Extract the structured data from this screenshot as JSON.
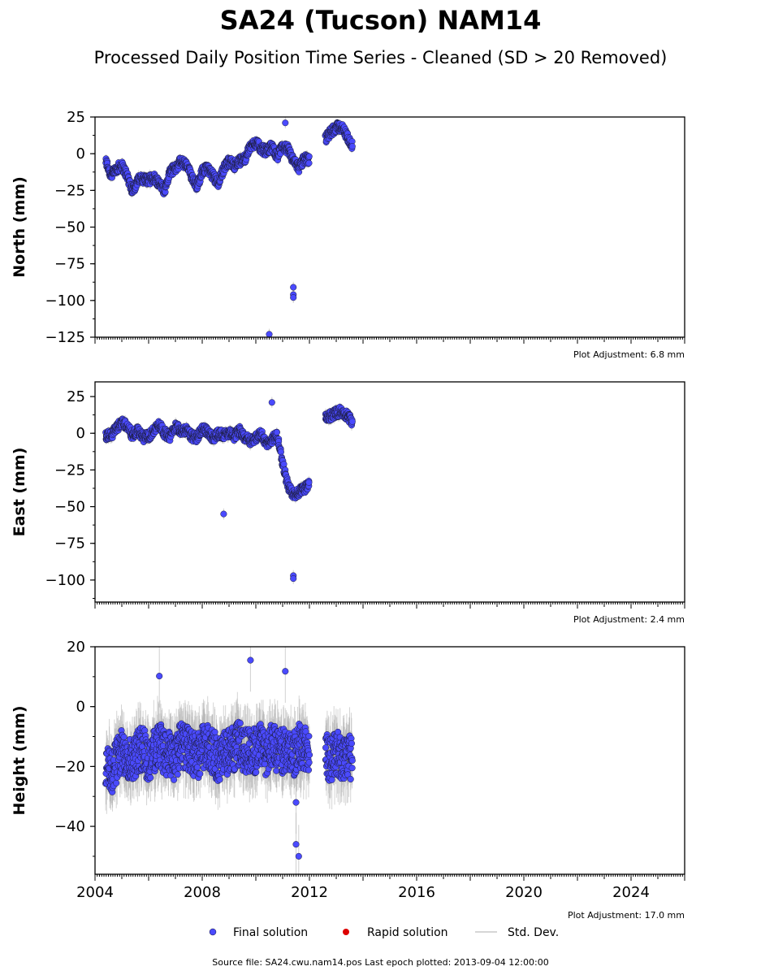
{
  "title": "SA24 (Tucson) NAM14",
  "subtitle": "Processed Daily Position Time Series - Cleaned (SD > 20 Removed)",
  "footer": "Source file: SA24.cwu.nam14.pos  Last epoch plotted: 2013-09-04 12:00:00",
  "legend": {
    "final": "Final solution",
    "rapid": "Rapid solution",
    "std": "Std. Dev."
  },
  "colors": {
    "final": "#4a4aff",
    "final_edge": "#1a1a33",
    "rapid": "#dd0000",
    "std": "#b0b0b0"
  },
  "chart_data": [
    {
      "type": "scatter",
      "component": "north",
      "ylabel": "North (mm)",
      "ylim": [
        -125,
        25
      ],
      "yticks": [
        25,
        0,
        -25,
        -50,
        -75,
        -100,
        -125
      ],
      "xlim": [
        2004.0,
        2026.0
      ],
      "adjustment": "Plot Adjustment: 6.8 mm",
      "x": [
        2004.4,
        2004.6,
        2004.8,
        2005.0,
        2005.2,
        2005.4,
        2005.6,
        2005.8,
        2006.0,
        2006.2,
        2006.4,
        2006.6,
        2006.8,
        2007.0,
        2007.2,
        2007.4,
        2007.6,
        2007.8,
        2008.0,
        2008.2,
        2008.4,
        2008.6,
        2008.8,
        2009.0,
        2009.2,
        2009.4,
        2009.6,
        2009.8,
        2010.0,
        2010.2,
        2010.4,
        2010.6,
        2010.8,
        2011.0,
        2011.2,
        2011.4,
        2011.6,
        2011.8,
        2012.0,
        2012.6,
        2012.8,
        2013.0,
        2013.2,
        2013.4,
        2013.6
      ],
      "y": [
        -5,
        -15,
        -10,
        -8,
        -15,
        -25,
        -18,
        -17,
        -18,
        -16,
        -20,
        -25,
        -12,
        -10,
        -5,
        -8,
        -15,
        -22,
        -12,
        -10,
        -15,
        -20,
        -10,
        -5,
        -8,
        -5,
        -3,
        5,
        8,
        3,
        2,
        5,
        -2,
        5,
        3,
        -5,
        -10,
        -3,
        -5,
        10,
        15,
        18,
        18,
        12,
        5
      ],
      "outliers": [
        {
          "x": 2010.5,
          "y": -123
        },
        {
          "x": 2011.4,
          "y": -91
        },
        {
          "x": 2011.4,
          "y": -96
        },
        {
          "x": 2011.4,
          "y": -98
        },
        {
          "x": 2011.1,
          "y": 21
        }
      ]
    },
    {
      "type": "scatter",
      "component": "east",
      "ylabel": "East (mm)",
      "ylim": [
        -115,
        35
      ],
      "yticks": [
        25,
        0,
        -25,
        -50,
        -75,
        -100
      ],
      "xlim": [
        2004.0,
        2026.0
      ],
      "adjustment": "Plot Adjustment: 2.4 mm",
      "x": [
        2004.4,
        2004.6,
        2004.8,
        2005.0,
        2005.2,
        2005.4,
        2005.6,
        2005.8,
        2006.0,
        2006.2,
        2006.4,
        2006.6,
        2006.8,
        2007.0,
        2007.2,
        2007.4,
        2007.6,
        2007.8,
        2008.0,
        2008.2,
        2008.4,
        2008.6,
        2008.8,
        2009.0,
        2009.2,
        2009.4,
        2009.6,
        2009.8,
        2010.0,
        2010.2,
        2010.4,
        2010.6,
        2010.8,
        2011.0,
        2011.2,
        2011.4,
        2011.6,
        2011.8,
        2012.0,
        2012.6,
        2012.8,
        2013.0,
        2013.2,
        2013.4,
        2013.6
      ],
      "y": [
        -2,
        -1,
        3,
        8,
        5,
        -2,
        2,
        -3,
        -2,
        2,
        6,
        0,
        -2,
        5,
        2,
        2,
        -2,
        -3,
        3,
        1,
        -3,
        0,
        -1,
        0,
        -2,
        2,
        -3,
        -5,
        -3,
        0,
        -8,
        -4,
        -2,
        -20,
        -36,
        -42,
        -40,
        -38,
        -35,
        10,
        12,
        14,
        15,
        12,
        8
      ],
      "outliers": [
        {
          "x": 2008.8,
          "y": -55
        },
        {
          "x": 2011.4,
          "y": -97
        },
        {
          "x": 2011.4,
          "y": -99
        },
        {
          "x": 2010.6,
          "y": 21
        }
      ]
    },
    {
      "type": "scatter",
      "component": "height",
      "ylabel": "Height (mm)",
      "ylim": [
        -56,
        20
      ],
      "yticks": [
        20,
        0,
        -20,
        -40
      ],
      "xlim": [
        2004.0,
        2026.0
      ],
      "xticks": [
        "2004",
        "2008",
        "2012",
        "2016",
        "2020",
        "2024"
      ],
      "adjustment": "Plot Adjustment: 17.0 mm",
      "x": [
        2004.4,
        2004.6,
        2004.8,
        2005.0,
        2005.2,
        2005.4,
        2005.6,
        2005.8,
        2006.0,
        2006.2,
        2006.4,
        2006.6,
        2006.8,
        2007.0,
        2007.2,
        2007.4,
        2007.6,
        2007.8,
        2008.0,
        2008.2,
        2008.4,
        2008.6,
        2008.8,
        2009.0,
        2009.2,
        2009.4,
        2009.6,
        2009.8,
        2010.0,
        2010.2,
        2010.4,
        2010.6,
        2010.8,
        2011.0,
        2011.2,
        2011.4,
        2011.6,
        2011.8,
        2012.0,
        2012.6,
        2012.8,
        2013.0,
        2013.2,
        2013.4,
        2013.6
      ],
      "y": [
        -20,
        -22,
        -18,
        -15,
        -16,
        -18,
        -15,
        -14,
        -18,
        -15,
        -12,
        -16,
        -15,
        -18,
        -12,
        -14,
        -15,
        -17,
        -14,
        -13,
        -15,
        -18,
        -16,
        -15,
        -14,
        -12,
        -15,
        -14,
        -15,
        -13,
        -16,
        -12,
        -15,
        -15,
        -14,
        -16,
        -13,
        -14,
        -15,
        -16,
        -18,
        -15,
        -17,
        -16,
        -18
      ],
      "outliers": [
        {
          "x": 2009.8,
          "y": 15.5
        },
        {
          "x": 2011.1,
          "y": 11.8
        },
        {
          "x": 2006.4,
          "y": 10.2
        },
        {
          "x": 2011.5,
          "y": -46
        },
        {
          "x": 2011.6,
          "y": -50
        },
        {
          "x": 2011.5,
          "y": -32
        }
      ]
    }
  ]
}
